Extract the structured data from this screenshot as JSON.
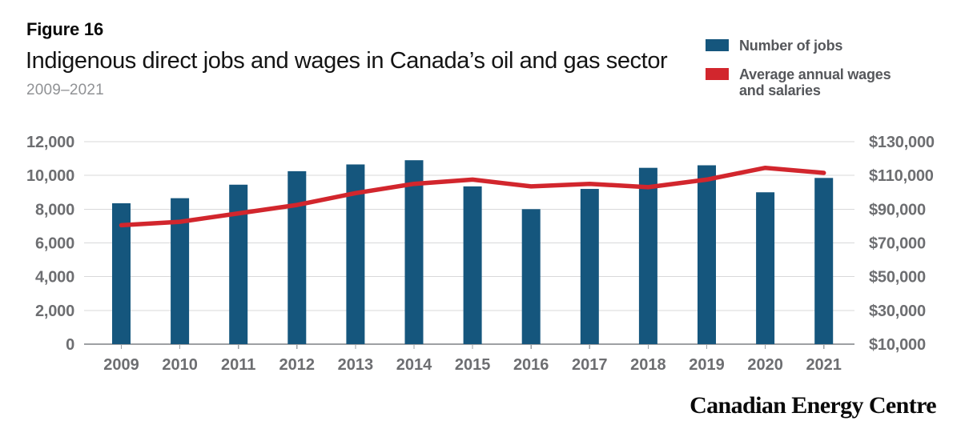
{
  "header": {
    "figure_label": "Figure 16",
    "title": "Indigenous direct jobs and wages in Canada’s oil and gas sector",
    "subtitle": "2009–2021"
  },
  "legend": {
    "items": [
      {
        "label": "Number of jobs",
        "color": "#15567D"
      },
      {
        "label": "Average annual wages and salaries",
        "color": "#D2262D"
      }
    ]
  },
  "chart_data": {
    "type": "bar",
    "title": "Indigenous direct jobs and wages in Canada’s oil and gas sector",
    "subtitle": "2009–2021",
    "categories": [
      "2009",
      "2010",
      "2011",
      "2012",
      "2013",
      "2014",
      "2015",
      "2016",
      "2017",
      "2018",
      "2019",
      "2020",
      "2021"
    ],
    "series": [
      {
        "name": "Number of jobs",
        "type": "bar",
        "axis": "left",
        "color": "#15567D",
        "values": [
          8350,
          8650,
          9450,
          10250,
          10650,
          10900,
          9350,
          8000,
          9200,
          10450,
          10600,
          9000,
          9850
        ]
      },
      {
        "name": "Average annual wages and salaries",
        "type": "line",
        "axis": "right",
        "color": "#D2262D",
        "values": [
          80500,
          82500,
          87500,
          92500,
          99500,
          105000,
          107500,
          103500,
          105000,
          103000,
          107500,
          114500,
          111500
        ]
      }
    ],
    "left_axis": {
      "min": 0,
      "max": 12000,
      "tick_values": [
        0,
        2000,
        4000,
        6000,
        8000,
        10000,
        12000
      ],
      "tick_labels": [
        "0",
        "2,000",
        "4,000",
        "6,000",
        "8,000",
        "10,000",
        "12,000"
      ]
    },
    "right_axis": {
      "min": 10000,
      "max": 130000,
      "tick_values": [
        10000,
        30000,
        50000,
        70000,
        90000,
        110000,
        130000
      ],
      "tick_labels": [
        "$10,000",
        "$30,000",
        "$50,000",
        "$70,000",
        "$90,000",
        "$110,000",
        "$130,000"
      ]
    },
    "grid": "horizontal",
    "legend_position": "top-right",
    "grid_color": "#D8D9DA",
    "axis_line_color": "#9EA0A3"
  },
  "footer": {
    "brand": "Canadian Energy Centre"
  }
}
